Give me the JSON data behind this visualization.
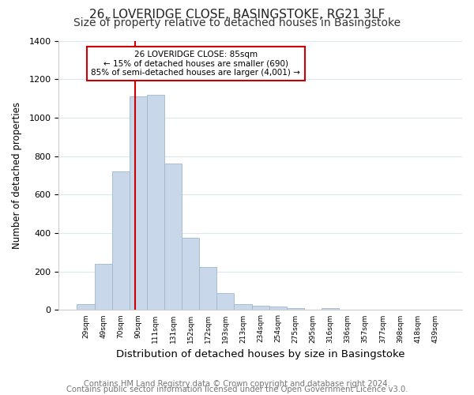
{
  "title1": "26, LOVERIDGE CLOSE, BASINGSTOKE, RG21 3LF",
  "title2": "Size of property relative to detached houses in Basingstoke",
  "xlabel": "Distribution of detached houses by size in Basingstoke",
  "ylabel": "Number of detached properties",
  "bin_labels": [
    "29sqm",
    "49sqm",
    "70sqm",
    "90sqm",
    "111sqm",
    "131sqm",
    "152sqm",
    "172sqm",
    "193sqm",
    "213sqm",
    "234sqm",
    "254sqm",
    "275sqm",
    "295sqm",
    "316sqm",
    "336sqm",
    "357sqm",
    "377sqm",
    "398sqm",
    "418sqm",
    "439sqm"
  ],
  "bar_values": [
    30,
    240,
    720,
    1110,
    1120,
    760,
    375,
    225,
    90,
    30,
    22,
    18,
    12,
    0,
    12,
    0,
    0,
    0,
    0,
    0,
    0
  ],
  "bar_color": "#c8d8ea",
  "bar_edge_color": "#a0b8cc",
  "property_line_bin_index": 2.85,
  "ylim": [
    0,
    1400
  ],
  "yticks": [
    0,
    200,
    400,
    600,
    800,
    1000,
    1200,
    1400
  ],
  "annotation_title": "26 LOVERIDGE CLOSE: 85sqm",
  "annotation_line1": "← 15% of detached houses are smaller (690)",
  "annotation_line2": "85% of semi-detached houses are larger (4,001) →",
  "footer1": "Contains HM Land Registry data © Crown copyright and database right 2024.",
  "footer2": "Contains public sector information licensed under the Open Government Licence v3.0.",
  "grid_color": "#dce8f0",
  "annotation_box_color": "#ffffff",
  "annotation_box_edge": "#cc0000",
  "red_line_color": "#cc0000",
  "title1_fontsize": 11,
  "title2_fontsize": 10,
  "xlabel_fontsize": 9.5,
  "ylabel_fontsize": 8.5,
  "footer_fontsize": 7.2
}
